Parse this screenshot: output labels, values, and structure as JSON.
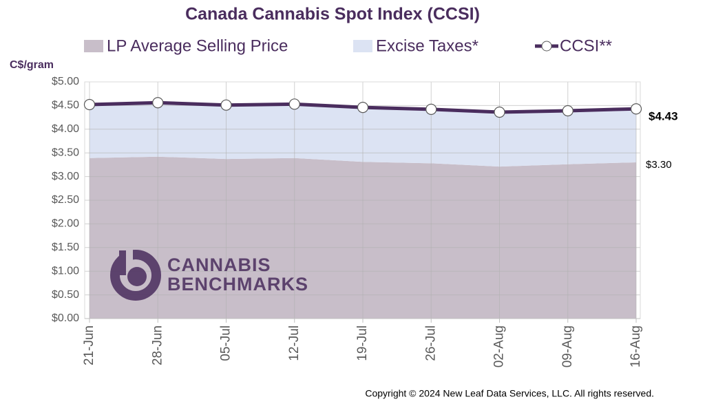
{
  "chart_data": {
    "type": "stacked-area-line",
    "title": "Canada Cannabis Spot Index (CCSI)",
    "y_label": "C$/gram",
    "categories": [
      "21-Jun",
      "28-Jun",
      "05-Jul",
      "12-Jul",
      "19-Jul",
      "26-Jul",
      "02-Aug",
      "09-Aug",
      "16-Aug"
    ],
    "series": [
      {
        "name": "LP Average Selling Price",
        "kind": "area",
        "color": "#c8bec9",
        "values": [
          3.39,
          3.42,
          3.37,
          3.39,
          3.31,
          3.28,
          3.21,
          3.26,
          3.3
        ],
        "value_labels": [
          null,
          null,
          null,
          null,
          null,
          null,
          null,
          null,
          "$3.30"
        ]
      },
      {
        "name": "Excise Taxes*",
        "kind": "area",
        "color": "#dce3f3",
        "values": [
          1.13,
          1.14,
          1.14,
          1.14,
          1.15,
          1.14,
          1.15,
          1.13,
          1.13
        ]
      },
      {
        "name": "CCSI**",
        "kind": "line",
        "color": "#4a2d5e",
        "values": [
          4.52,
          4.56,
          4.51,
          4.53,
          4.46,
          4.42,
          4.36,
          4.39,
          4.43
        ],
        "value_labels": [
          null,
          null,
          null,
          null,
          null,
          null,
          null,
          null,
          "$4.43"
        ]
      }
    ],
    "ylim": [
      0,
      5
    ],
    "yticks": [
      {
        "value": 0,
        "label": "$0.00"
      },
      {
        "value": 0.5,
        "label": "$0.50"
      },
      {
        "value": 1,
        "label": "$1.00"
      },
      {
        "value": 1.5,
        "label": "$1.50"
      },
      {
        "value": 2,
        "label": "$2.00"
      },
      {
        "value": 2.5,
        "label": "$2.50"
      },
      {
        "value": 3,
        "label": "$3.00"
      },
      {
        "value": 3.5,
        "label": "$3.50"
      },
      {
        "value": 4,
        "label": "$4.00"
      },
      {
        "value": 4.5,
        "label": "$4.50"
      },
      {
        "value": 5,
        "label": "$5.00"
      }
    ],
    "grid": true,
    "legend": "top",
    "watermark": [
      "CANNABIS",
      "BENCHMARKS"
    ],
    "copyright": "Copyright © 2024 New Leaf Data Services, LLC. All rights reserved."
  }
}
